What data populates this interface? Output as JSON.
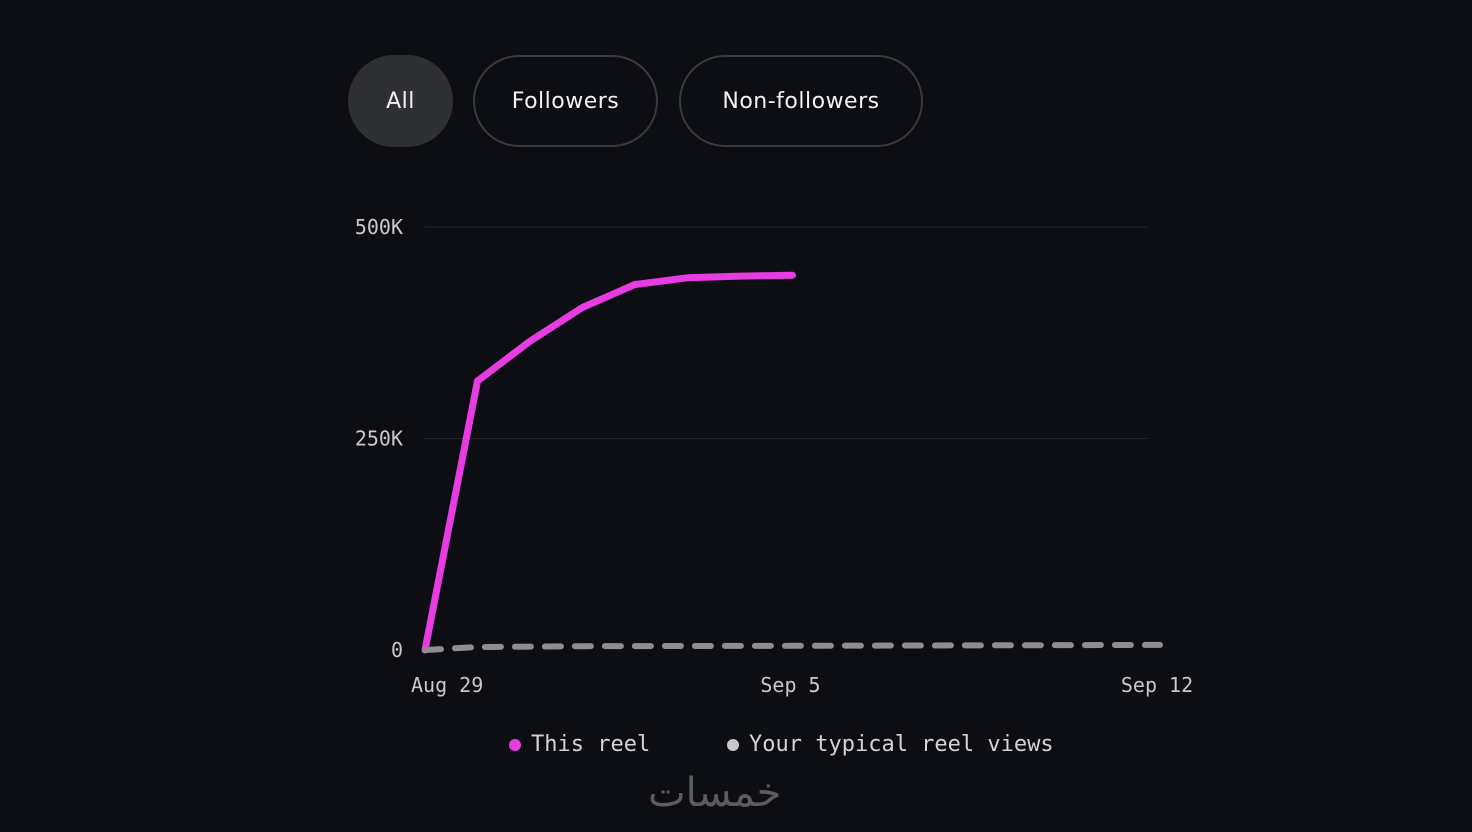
{
  "tabs": [
    {
      "label": "All",
      "active": true
    },
    {
      "label": "Followers",
      "active": false
    },
    {
      "label": "Non-followers",
      "active": false
    }
  ],
  "chart_data": {
    "type": "line",
    "y_ticks": [
      {
        "value": 0,
        "label": "0"
      },
      {
        "value": 250000,
        "label": "250K"
      },
      {
        "value": 500000,
        "label": "500K"
      }
    ],
    "x_ticks": [
      {
        "value": 0,
        "label": "Aug 29"
      },
      {
        "value": 7,
        "label": "Sep 5"
      },
      {
        "value": 14,
        "label": "Sep 12"
      }
    ],
    "ylim": [
      0,
      500000
    ],
    "xlim": [
      0,
      14
    ],
    "grid": true,
    "legend_position": "bottom",
    "series": [
      {
        "name": "This reel",
        "color": "#e83ce3",
        "style": "solid",
        "x": [
          "Aug 29",
          "Aug 30",
          "Aug 31",
          "Sep 1",
          "Sep 2",
          "Sep 3",
          "Sep 4",
          "Sep 5"
        ],
        "y": [
          0,
          318000,
          365000,
          405000,
          432000,
          440000,
          442000,
          443000
        ]
      },
      {
        "name": "Your typical reel views",
        "color": "#8e8e91",
        "style": "dashed",
        "x": [
          "Aug 29",
          "Aug 30",
          "Sep 1",
          "Sep 5",
          "Sep 12"
        ],
        "y": [
          0,
          3500,
          4500,
          5000,
          6000
        ]
      }
    ]
  },
  "legend": {
    "items": [
      {
        "label": "This reel",
        "color": "#e83ce3"
      },
      {
        "label": "Your typical reel views",
        "color": "#c8c8ca"
      }
    ]
  },
  "watermark": "خمسات"
}
